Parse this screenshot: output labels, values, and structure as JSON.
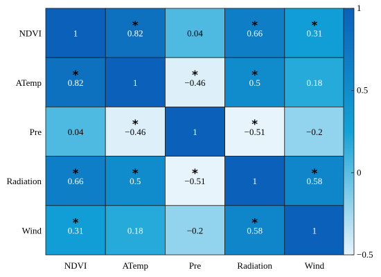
{
  "chart_data": {
    "type": "heatmap",
    "title": "",
    "xlabel": "",
    "ylabel": "",
    "rows": [
      "NDVI",
      "ATemp",
      "Pre",
      "Radiation",
      "Wind"
    ],
    "columns": [
      "NDVI",
      "ATemp",
      "Pre",
      "Radiation",
      "Wind"
    ],
    "values": [
      [
        1,
        0.82,
        0.04,
        0.66,
        0.31
      ],
      [
        0.82,
        1,
        -0.46,
        0.5,
        0.18
      ],
      [
        0.04,
        -0.46,
        1,
        -0.51,
        -0.2
      ],
      [
        0.66,
        0.5,
        -0.51,
        1,
        0.58
      ],
      [
        0.31,
        0.18,
        -0.2,
        0.58,
        1
      ]
    ],
    "value_labels": [
      [
        "1",
        "0.82",
        "0.04",
        "0.66",
        "0.31"
      ],
      [
        "0.82",
        "1",
        "−0.46",
        "0.5",
        "0.18"
      ],
      [
        "0.04",
        "−0.46",
        "1",
        "−0.51",
        "−0.2"
      ],
      [
        "0.66",
        "0.5",
        "−0.51",
        "1",
        "0.58"
      ],
      [
        "0.31",
        "0.18",
        "−0.2",
        "0.58",
        "1"
      ]
    ],
    "significant": [
      [
        false,
        true,
        false,
        true,
        true
      ],
      [
        true,
        false,
        true,
        true,
        false
      ],
      [
        false,
        true,
        false,
        true,
        false
      ],
      [
        true,
        true,
        true,
        false,
        true
      ],
      [
        true,
        false,
        false,
        true,
        false
      ]
    ],
    "significance_marker": "*",
    "colorbar": {
      "range": [
        -0.5,
        1
      ],
      "ticks": [
        1,
        0.5,
        0,
        -0.5
      ],
      "tick_labels": [
        "1",
        "0.5",
        "0",
        "−0.5"
      ],
      "colors": [
        "#e8f4fb",
        "#12a2d7",
        "#0b61b9"
      ]
    },
    "grid": true,
    "legend": "colorbar-right"
  }
}
